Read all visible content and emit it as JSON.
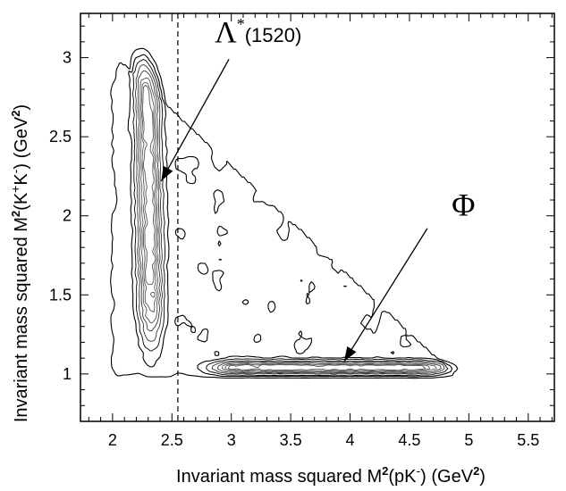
{
  "chart_data": {
    "type": "contour",
    "xlabel": {
      "prefix": "Invariant mass squared  M",
      "exp": "2",
      "paren_open": "(pK",
      "charge": "-",
      "paren_close": ")   (GeV",
      "unit_exp": "2",
      "end": ")"
    },
    "ylabel": {
      "prefix": "Invariant mass squared  M",
      "exp": "2",
      "paren_open": "(K",
      "charge1": "+",
      "mid": "K",
      "charge2": "-",
      "paren_close": ")   (GeV",
      "unit_exp": "2",
      "end": ")"
    },
    "xlim": [
      1.73,
      5.72
    ],
    "ylim": [
      0.7,
      3.28
    ],
    "xticks": [
      2,
      2.5,
      3,
      3.5,
      4,
      4.5,
      5,
      5.5
    ],
    "xtick_labels": [
      "2",
      "2.5",
      "3",
      "3.5",
      "4",
      "4.5",
      "5",
      "5.5"
    ],
    "yticks": [
      1,
      1.5,
      2,
      2.5,
      3
    ],
    "ytick_labels": [
      "1",
      "1.5",
      "2",
      "2.5",
      "3"
    ],
    "minor_xstep": 0.1,
    "minor_ystep": 0.1,
    "vertical_cut_x": 2.55,
    "contour_levels": [
      0.05,
      0.12,
      0.22,
      0.36,
      0.52,
      0.7,
      0.86,
      1.0
    ],
    "annotations": [
      {
        "name": "lambda",
        "base": "Λ",
        "sup": "*",
        "rest": "(1520)",
        "label_x": 2.92,
        "label_y": 3.1,
        "arrow_from": [
          2.98,
          2.99
        ],
        "arrow_to": [
          2.41,
          2.22
        ]
      },
      {
        "name": "phi",
        "text": "Φ",
        "label_x": 4.93,
        "label_y": 2.0,
        "arrow_from": [
          4.65,
          1.92
        ],
        "arrow_to": [
          3.95,
          1.08
        ]
      }
    ]
  }
}
